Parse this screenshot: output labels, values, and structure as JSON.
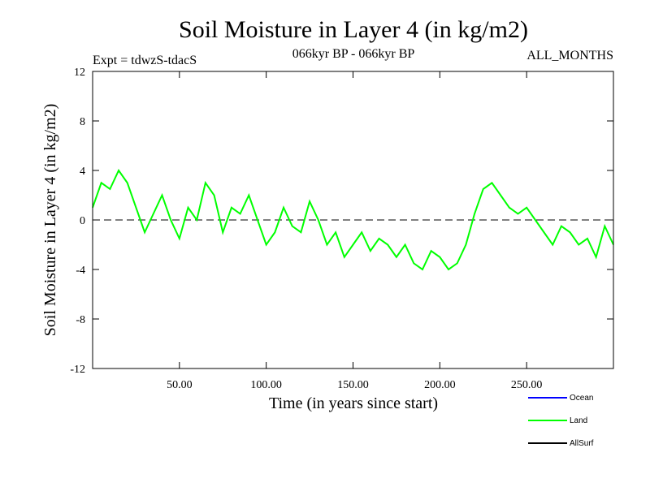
{
  "chart_data": {
    "type": "line",
    "title": "Soil Moisture in Layer 4 (in kg/m2)",
    "subtitle_left": "Expt = tdwzS-tdacS",
    "subtitle_center": "066kyr BP - 066kyr BP",
    "subtitle_right": "ALL_MONTHS",
    "xlabel": "Time (in years since start)",
    "ylabel": "Soil Moisture in Layer 4 (in kg/m2)",
    "xlim": [
      0,
      300
    ],
    "ylim": [
      -12,
      12
    ],
    "xticks": [
      50,
      100,
      150,
      200,
      250
    ],
    "xtick_labels": [
      "50.00",
      "100.00",
      "150.00",
      "200.00",
      "250.00"
    ],
    "yticks": [
      -12,
      -8,
      -4,
      0,
      4,
      8,
      12
    ],
    "ytick_labels": [
      "-12",
      "-8",
      "-4",
      "0",
      "4",
      "8",
      "12"
    ],
    "zero_line": "dashed",
    "legend_placement": "bottom-right",
    "series": [
      {
        "name": "Ocean",
        "color": "#0000ff",
        "values": []
      },
      {
        "name": "Land",
        "color": "#00ff00",
        "x": [
          0,
          5,
          10,
          15,
          20,
          25,
          30,
          35,
          40,
          45,
          50,
          55,
          60,
          65,
          70,
          75,
          80,
          85,
          90,
          95,
          100,
          105,
          110,
          115,
          120,
          125,
          130,
          135,
          140,
          145,
          150,
          155,
          160,
          165,
          170,
          175,
          180,
          185,
          190,
          195,
          200,
          205,
          210,
          215,
          220,
          225,
          230,
          235,
          240,
          245,
          250,
          255,
          260,
          265,
          270,
          275,
          280,
          285,
          290,
          295,
          300
        ],
        "values": [
          1,
          3,
          2.5,
          4,
          3,
          1,
          -1,
          0.5,
          2,
          0,
          -1.5,
          1,
          0,
          3,
          2,
          -1,
          1,
          0.5,
          2,
          0,
          -2,
          -1,
          1,
          -0.5,
          -1,
          1.5,
          0,
          -2,
          -1,
          -3,
          -2,
          -1,
          -2.5,
          -1.5,
          -2,
          -3,
          -2,
          -3.5,
          -4,
          -2.5,
          -3,
          -4,
          -3.5,
          -2,
          0.5,
          2.5,
          3,
          2,
          1,
          0.5,
          1,
          0,
          -1,
          -2,
          -0.5,
          -1,
          -2,
          -1.5,
          -3,
          -0.5,
          -2
        ]
      },
      {
        "name": "AllSurf",
        "color": "#000000",
        "values": []
      }
    ]
  }
}
